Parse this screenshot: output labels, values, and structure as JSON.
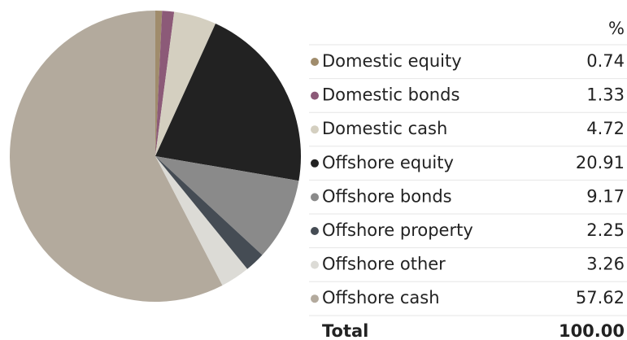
{
  "chart_data": {
    "type": "pie",
    "categories": [
      "Domestic equity",
      "Domestic bonds",
      "Domestic cash",
      "Offshore equity",
      "Offshore bonds",
      "Offshore property",
      "Offshore other",
      "Offshore cash"
    ],
    "values": [
      0.74,
      1.33,
      4.72,
      20.91,
      9.17,
      2.25,
      3.26,
      57.62
    ],
    "colors": [
      "#a08c6c",
      "#8c5a78",
      "#d4cfc0",
      "#222222",
      "#8a8a8a",
      "#454c54",
      "#dcdbd6",
      "#b3aa9d"
    ],
    "value_header": "%",
    "total_label": "Total",
    "total_value": "100.00"
  }
}
